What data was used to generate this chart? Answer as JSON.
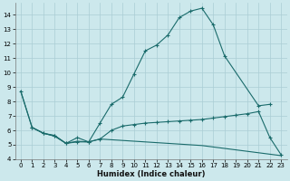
{
  "xlabel": "Humidex (Indice chaleur)",
  "xlim": [
    -0.5,
    23.5
  ],
  "ylim": [
    4,
    14.8
  ],
  "yticks": [
    4,
    5,
    6,
    7,
    8,
    9,
    10,
    11,
    12,
    13,
    14
  ],
  "xticks": [
    0,
    1,
    2,
    3,
    4,
    5,
    6,
    7,
    8,
    9,
    10,
    11,
    12,
    13,
    14,
    15,
    16,
    17,
    18,
    19,
    20,
    21,
    22,
    23
  ],
  "bg_color": "#cce8ec",
  "line_color": "#1a6b6b",
  "grid_color": "#aacdd4",
  "line1_x": [
    0,
    1,
    2,
    3,
    4,
    5,
    6,
    7,
    8,
    9,
    10,
    11,
    12,
    13,
    14,
    15,
    16,
    17,
    18,
    21,
    22
  ],
  "line1_y": [
    8.7,
    6.2,
    5.8,
    5.6,
    5.1,
    5.5,
    5.2,
    6.5,
    7.8,
    8.3,
    9.9,
    11.5,
    11.9,
    12.6,
    13.8,
    14.25,
    14.45,
    13.3,
    11.15,
    7.7,
    7.8
  ],
  "line2_x": [
    1,
    2,
    3,
    4,
    5,
    6,
    7,
    8,
    9,
    10,
    11,
    12,
    13,
    14,
    15,
    16,
    17,
    18,
    19,
    20,
    21,
    22,
    23
  ],
  "line2_y": [
    6.2,
    5.8,
    5.6,
    5.1,
    5.2,
    5.2,
    5.4,
    6.0,
    6.3,
    6.4,
    6.5,
    6.55,
    6.6,
    6.65,
    6.7,
    6.75,
    6.85,
    6.95,
    7.05,
    7.15,
    7.3,
    5.5,
    4.3
  ],
  "line3_x": [
    0,
    1,
    2,
    3,
    4,
    5,
    6,
    7,
    8,
    9,
    10,
    11,
    12,
    13,
    14,
    15,
    16,
    17,
    18,
    19,
    20,
    21,
    22,
    23
  ],
  "line3_y": [
    8.7,
    6.2,
    5.8,
    5.65,
    5.1,
    5.25,
    5.2,
    5.4,
    5.35,
    5.3,
    5.25,
    5.2,
    5.15,
    5.1,
    5.05,
    5.0,
    4.95,
    4.85,
    4.75,
    4.65,
    4.55,
    4.45,
    4.35,
    4.25
  ]
}
